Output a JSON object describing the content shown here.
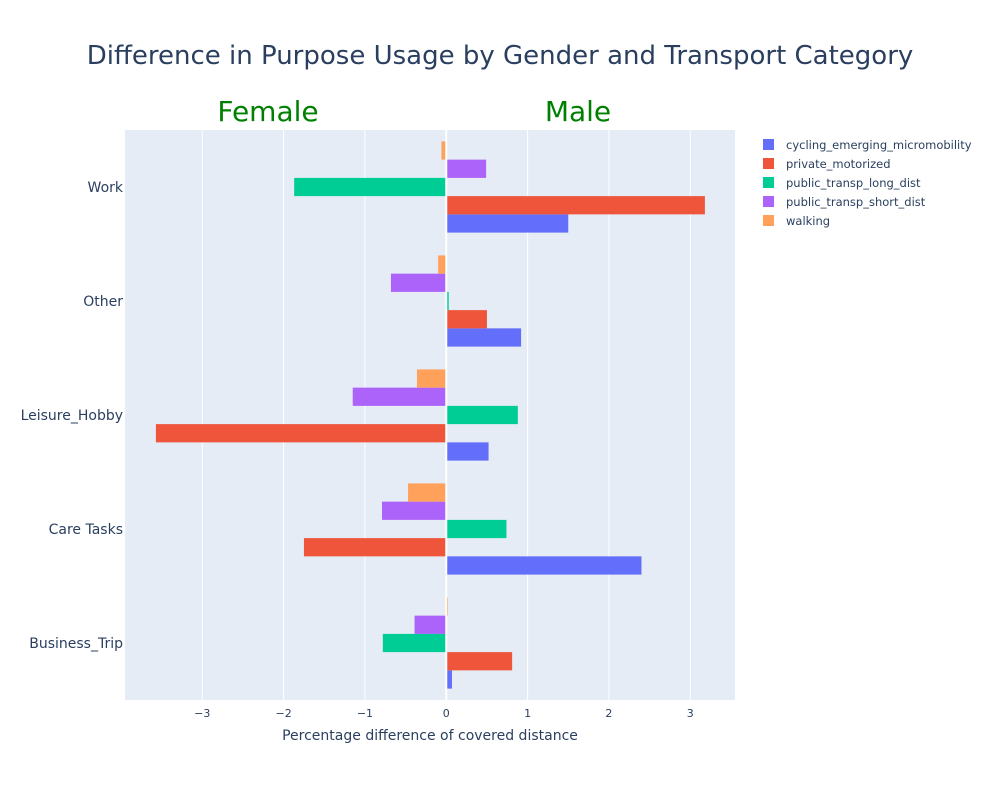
{
  "chart_data": {
    "type": "bar",
    "orientation": "horizontal",
    "title": "Difference in Purpose Usage by Gender and Transport Category",
    "xlabel": "Percentage difference of covered distance",
    "ylabel": "",
    "xlim": [
      -3.95,
      3.55
    ],
    "xticks": [
      -3,
      -2,
      -1,
      0,
      1,
      2,
      3
    ],
    "xtick_labels": [
      "−3",
      "−2",
      "−1",
      "0",
      "1",
      "2",
      "3"
    ],
    "categories": [
      "Business_Trip",
      "Care Tasks",
      "Leisure_Hobby",
      "Other",
      "Work"
    ],
    "annotations": [
      {
        "text": "Female",
        "color": "#008000"
      },
      {
        "text": "Male",
        "color": "#008000"
      }
    ],
    "legend_position": "top-right",
    "plot_background": "#E5ECF6",
    "grid": true,
    "series": [
      {
        "name": "cycling_emerging_micromobility",
        "color": "#636EFA",
        "values": [
          0.07,
          2.4,
          0.52,
          0.92,
          1.5
        ]
      },
      {
        "name": "private_motorized",
        "color": "#EF553B",
        "values": [
          0.81,
          -1.75,
          -3.57,
          0.5,
          3.18
        ]
      },
      {
        "name": "public_transp_long_dist",
        "color": "#00CC96",
        "values": [
          -0.78,
          0.74,
          0.88,
          0.03,
          -1.87
        ]
      },
      {
        "name": "public_transp_short_dist",
        "color": "#AB63FA",
        "values": [
          -0.39,
          -0.79,
          -1.15,
          -0.68,
          0.49
        ]
      },
      {
        "name": "walking",
        "color": "#FFA15A",
        "values": [
          0.02,
          -0.47,
          -0.36,
          -0.1,
          -0.06
        ]
      }
    ]
  }
}
